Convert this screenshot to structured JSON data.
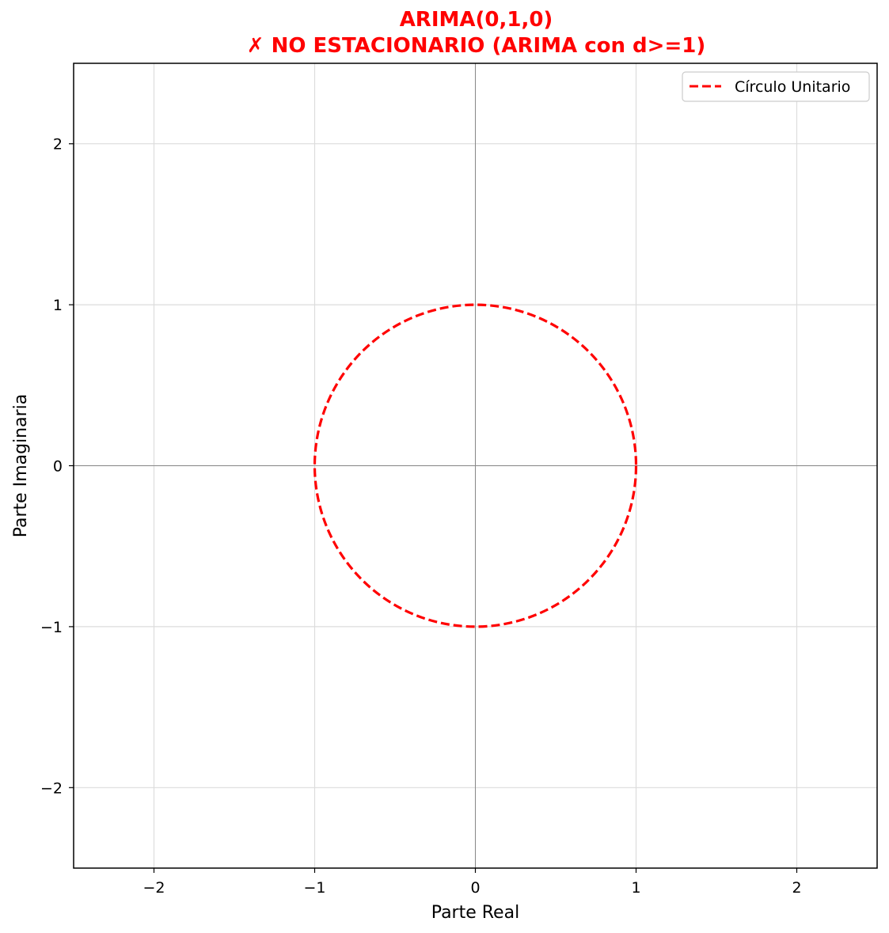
{
  "chart_data": {
    "type": "line",
    "title": "ARIMA(0,1,0)",
    "subtitle": "✗ NO ESTACIONARIO (ARIMA con d>=1)",
    "title_color": "#ff0000",
    "xlabel": "Parte Real",
    "ylabel": "Parte Imaginaria",
    "xlim": [
      -2.5,
      2.5
    ],
    "ylim": [
      -2.5,
      2.5
    ],
    "xticks": [
      -2,
      -1,
      0,
      1,
      2
    ],
    "yticks": [
      -2,
      -1,
      0,
      1,
      2
    ],
    "xtick_labels": [
      "−2",
      "−1",
      "0",
      "1",
      "2"
    ],
    "ytick_labels": [
      "−2",
      "−1",
      "0",
      "1",
      "2"
    ],
    "grid": true,
    "reference_lines": {
      "x": 0,
      "y": 0
    },
    "legend": {
      "position": "top-right",
      "entries": [
        "Círculo Unitario"
      ]
    },
    "series": [
      {
        "name": "Círculo Unitario",
        "shape": "circle",
        "center": [
          0,
          0
        ],
        "radius": 1,
        "color": "#ff0000",
        "line_style": "dashed"
      }
    ]
  }
}
